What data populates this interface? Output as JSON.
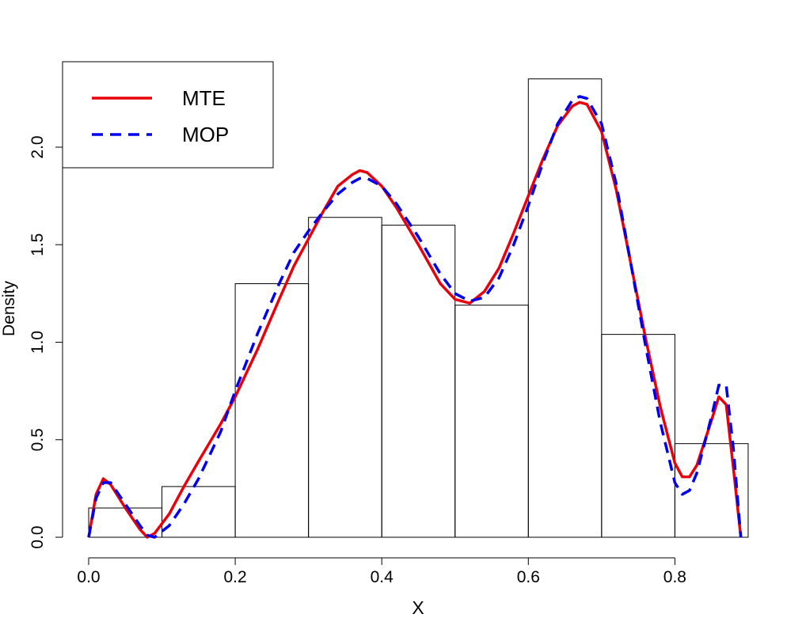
{
  "chart_data": {
    "type": "histogram",
    "xlabel": "X",
    "ylabel": "Density",
    "xlim": [
      0.0,
      0.9
    ],
    "ylim": [
      0.0,
      2.35
    ],
    "x_ticks": [
      "0.0",
      "0.2",
      "0.4",
      "0.6",
      "0.8"
    ],
    "y_ticks": [
      "0.0",
      "0.5",
      "1.0",
      "1.5",
      "2.0"
    ],
    "legend": {
      "placement": "top-left",
      "entries": [
        "MTE",
        "MOP"
      ]
    },
    "grid": false,
    "colors": {
      "MTE": "#e8000b",
      "MOP": "#0000ee",
      "bars": "#000000"
    },
    "histogram": {
      "bins": [
        {
          "x0": 0.0,
          "x1": 0.1,
          "density": 0.15
        },
        {
          "x0": 0.1,
          "x1": 0.2,
          "density": 0.26
        },
        {
          "x0": 0.2,
          "x1": 0.3,
          "density": 1.3
        },
        {
          "x0": 0.3,
          "x1": 0.4,
          "density": 1.64
        },
        {
          "x0": 0.4,
          "x1": 0.5,
          "density": 1.6
        },
        {
          "x0": 0.5,
          "x1": 0.6,
          "density": 1.19
        },
        {
          "x0": 0.6,
          "x1": 0.7,
          "density": 2.35
        },
        {
          "x0": 0.7,
          "x1": 0.8,
          "density": 1.04
        },
        {
          "x0": 0.8,
          "x1": 0.9,
          "density": 0.48
        }
      ]
    },
    "series": [
      {
        "name": "MTE",
        "style": "solid",
        "x": [
          0.0,
          0.01,
          0.02,
          0.03,
          0.05,
          0.07,
          0.08,
          0.09,
          0.11,
          0.13,
          0.15,
          0.18,
          0.2,
          0.23,
          0.26,
          0.28,
          0.3,
          0.32,
          0.34,
          0.36,
          0.37,
          0.38,
          0.4,
          0.42,
          0.45,
          0.48,
          0.5,
          0.52,
          0.54,
          0.56,
          0.58,
          0.6,
          0.62,
          0.64,
          0.66,
          0.67,
          0.68,
          0.7,
          0.72,
          0.74,
          0.76,
          0.78,
          0.8,
          0.81,
          0.82,
          0.83,
          0.85,
          0.86,
          0.87,
          0.88,
          0.89
        ],
        "y": [
          0.0,
          0.22,
          0.3,
          0.27,
          0.15,
          0.04,
          0.0,
          0.02,
          0.12,
          0.26,
          0.39,
          0.58,
          0.72,
          0.96,
          1.22,
          1.39,
          1.53,
          1.67,
          1.8,
          1.86,
          1.88,
          1.87,
          1.8,
          1.69,
          1.5,
          1.3,
          1.22,
          1.2,
          1.26,
          1.38,
          1.56,
          1.75,
          1.94,
          2.11,
          2.21,
          2.23,
          2.22,
          2.08,
          1.78,
          1.4,
          1.02,
          0.67,
          0.38,
          0.31,
          0.31,
          0.37,
          0.6,
          0.72,
          0.68,
          0.35,
          0.0
        ]
      },
      {
        "name": "MOP",
        "style": "dashed",
        "x": [
          0.0,
          0.01,
          0.02,
          0.03,
          0.05,
          0.07,
          0.08,
          0.09,
          0.11,
          0.13,
          0.15,
          0.18,
          0.2,
          0.23,
          0.26,
          0.28,
          0.3,
          0.32,
          0.34,
          0.36,
          0.37,
          0.38,
          0.4,
          0.42,
          0.45,
          0.48,
          0.5,
          0.52,
          0.54,
          0.56,
          0.58,
          0.6,
          0.62,
          0.64,
          0.66,
          0.67,
          0.68,
          0.7,
          0.72,
          0.74,
          0.76,
          0.78,
          0.8,
          0.81,
          0.82,
          0.83,
          0.85,
          0.86,
          0.87,
          0.88,
          0.89
        ],
        "y": [
          0.0,
          0.2,
          0.28,
          0.28,
          0.17,
          0.06,
          0.01,
          0.0,
          0.06,
          0.17,
          0.3,
          0.54,
          0.75,
          1.04,
          1.3,
          1.46,
          1.57,
          1.67,
          1.76,
          1.82,
          1.84,
          1.84,
          1.8,
          1.71,
          1.54,
          1.35,
          1.25,
          1.21,
          1.23,
          1.33,
          1.5,
          1.7,
          1.92,
          2.12,
          2.24,
          2.26,
          2.25,
          2.12,
          1.81,
          1.4,
          0.98,
          0.59,
          0.28,
          0.22,
          0.24,
          0.33,
          0.62,
          0.78,
          0.78,
          0.45,
          0.0
        ]
      }
    ]
  }
}
